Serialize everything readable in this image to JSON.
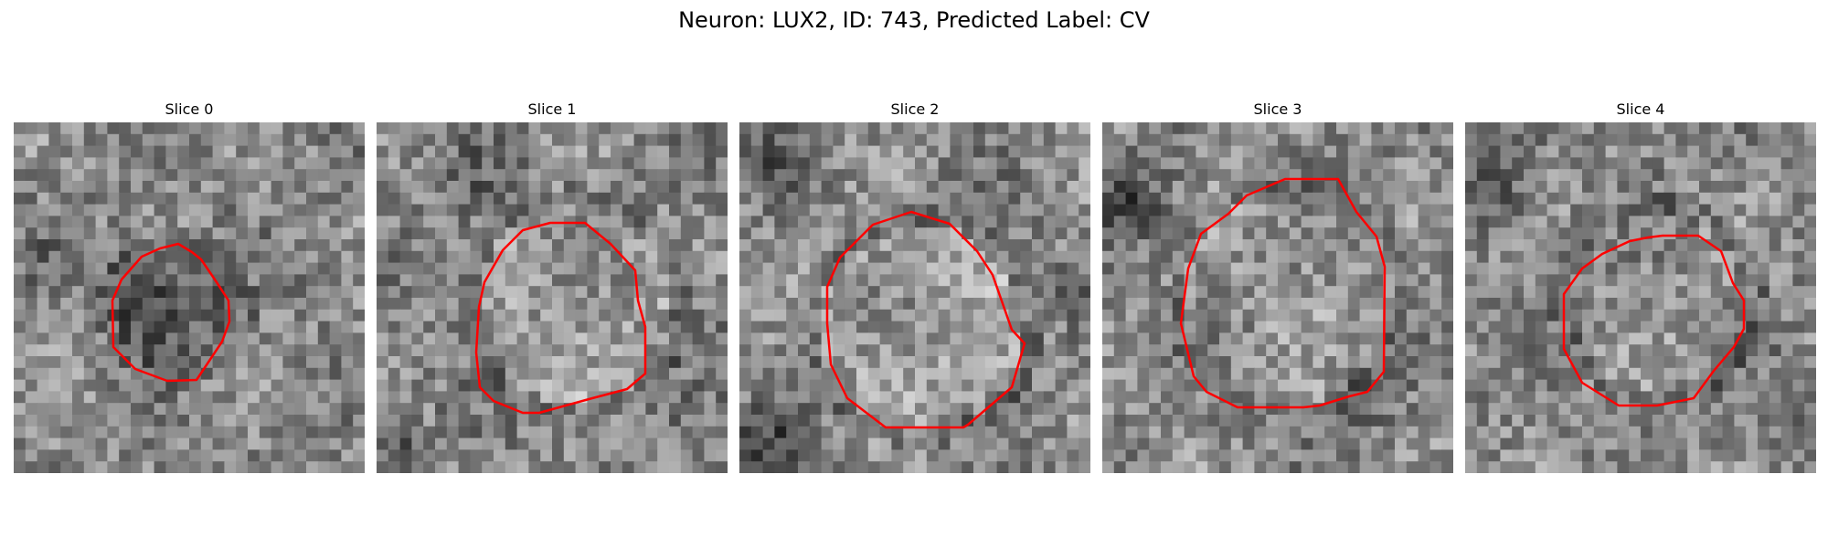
{
  "figure": {
    "title": "Neuron: LUX2, ID: 743, Predicted Label: CV"
  },
  "panels": [
    {
      "title": "Slice 0",
      "contour_color": "#ff0000"
    },
    {
      "title": "Slice 1",
      "contour_color": "#ff0000"
    },
    {
      "title": "Slice 2",
      "contour_color": "#ff0000"
    },
    {
      "title": "Slice 3",
      "contour_color": "#ff0000"
    },
    {
      "title": "Slice 4",
      "contour_color": "#ff0000"
    }
  ],
  "colors": {
    "background": "#ffffff",
    "contour": "#ff0000"
  }
}
